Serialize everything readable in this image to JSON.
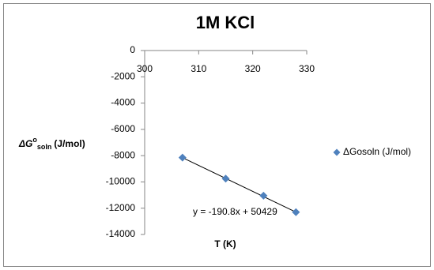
{
  "chart_data": {
    "type": "scatter",
    "title": "1M KCl",
    "x_label": "T (K)",
    "y_label": {
      "main": "ΔG",
      "sup": "o",
      "sub": "soln",
      "unit": "(J/mol)"
    },
    "series": [
      {
        "name": "ΔGosoln (J/mol)",
        "color": "#4f81bd",
        "x": [
          307,
          315,
          322,
          328
        ],
        "values": [
          -8150,
          -9750,
          -11050,
          -12300
        ]
      }
    ],
    "trendline_label": "y = -190.8x + 50429",
    "xlim": [
      300,
      330
    ],
    "xticks": [
      300,
      310,
      320,
      330
    ],
    "ylim": [
      -14000,
      0
    ],
    "yticks": [
      0,
      -2000,
      -4000,
      -6000,
      -8000,
      -10000,
      -12000,
      -14000
    ],
    "legend": "right"
  }
}
